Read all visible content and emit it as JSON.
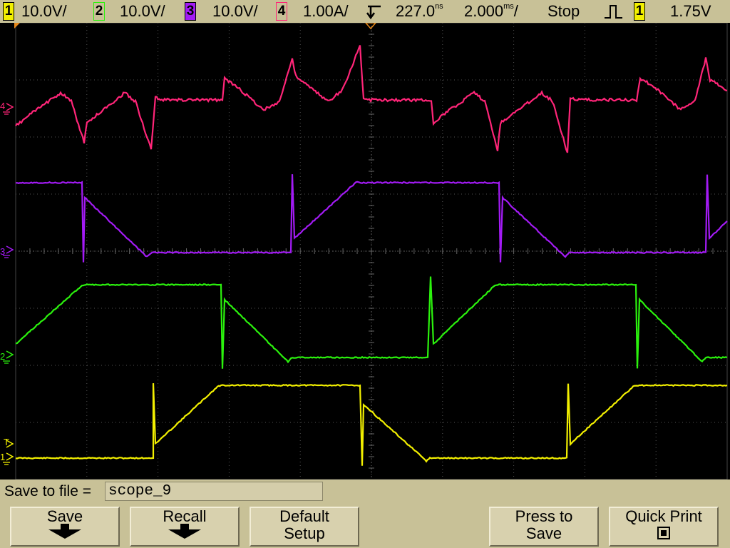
{
  "top_bar": {
    "channels": [
      {
        "badge": "1",
        "scale": "10.0V/",
        "color": "#f2ef00",
        "inverted": true
      },
      {
        "badge": "2",
        "scale": "10.0V/",
        "color": "#2bf20d",
        "inverted": false
      },
      {
        "badge": "3",
        "scale": "10.0V/",
        "color": "#a31bf5",
        "inverted": true
      },
      {
        "badge": "4",
        "scale": "1.00A/",
        "color": "#ff2578",
        "inverted": false
      }
    ],
    "delay_value": "227.0",
    "delay_unit": "ns",
    "timebase_value": "2.000",
    "timebase_unit": "ms",
    "timebase_suffix": "/",
    "run_state": "Stop",
    "trigger_source": "1",
    "trigger_level": "1.75V"
  },
  "screen": {
    "markers": {
      "ch4": "4",
      "ch3": "3",
      "ch2": "2",
      "ch1": "1",
      "trigger": "T"
    }
  },
  "bottom": {
    "save_label": "Save to file =",
    "save_filename": "scope_9",
    "softkeys": [
      {
        "line1": "Save",
        "line2": "",
        "icon": "down-arrow-icon"
      },
      {
        "line1": "Recall",
        "line2": "",
        "icon": "down-arrow-icon"
      },
      {
        "line1": "Default",
        "line2": "Setup",
        "icon": ""
      },
      {
        "line1": "Press to",
        "line2": "Save",
        "icon": ""
      },
      {
        "line1": "Quick Print",
        "line2": "",
        "icon": "print-square-icon"
      }
    ]
  },
  "colors": {
    "ch1": "#f2ef00",
    "ch2": "#2bf20d",
    "ch3": "#a31bf5",
    "ch4": "#ff2578",
    "grid": "#5a5a5a",
    "panel": "#c8c197"
  }
}
